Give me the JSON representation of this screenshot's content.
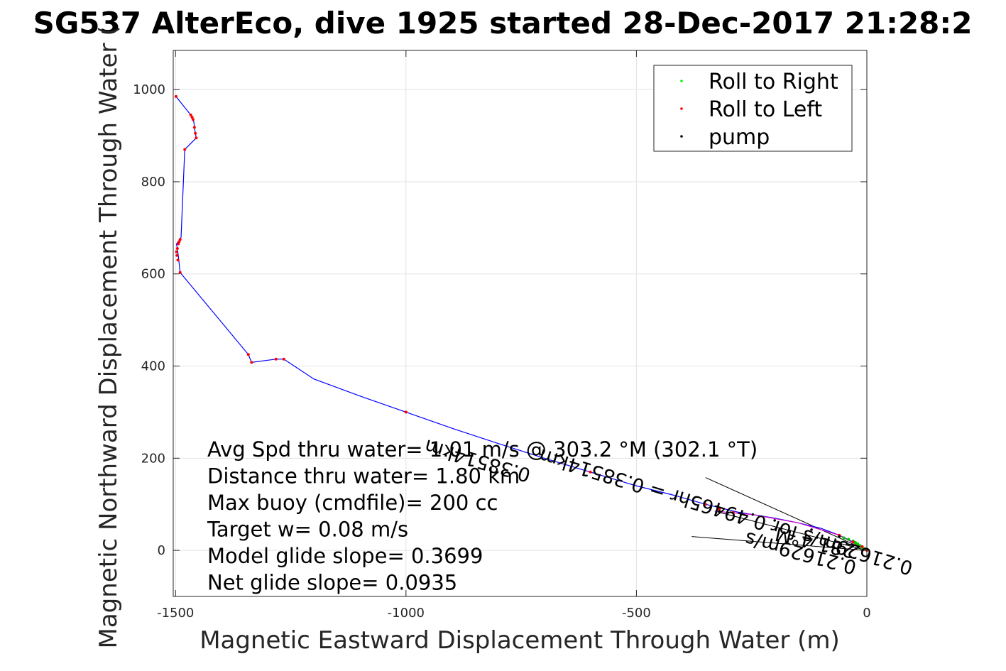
{
  "chart_data": {
    "type": "line",
    "title": "SG537 AlterEco, dive 1925 started 28-Dec-2017 21:28:2",
    "xlabel": "Magnetic Eastward Displacement Through Water (m)",
    "ylabel": "Magnetic Northward Displacement Through Water (",
    "xlim": [
      -1505,
      0
    ],
    "ylim": [
      -100,
      1085
    ],
    "xticks": [
      -1500,
      -1000,
      -500,
      0
    ],
    "yticks": [
      0,
      200,
      400,
      600,
      800,
      1000
    ],
    "xtick_labels": [
      "-1500",
      "-1000",
      "-500",
      "0"
    ],
    "ytick_labels": [
      "0",
      "200",
      "400",
      "600",
      "800",
      "1000"
    ],
    "grid": true,
    "legend_position": "top-right",
    "legend": [
      {
        "label": "Roll to Right",
        "color": "#00ff00"
      },
      {
        "label": "Roll to Left",
        "color": "#ff0000"
      },
      {
        "label": "pump",
        "color": "#000000"
      }
    ],
    "track": {
      "color": "#0000ff",
      "x": [
        0,
        -30,
        -60,
        -100,
        -150,
        -200,
        -280,
        -350,
        -420,
        -500,
        -600,
        -700,
        -800,
        -900,
        -1000,
        -1100,
        -1200,
        -1265,
        -1282,
        -1335,
        -1342,
        -1490,
        -1494,
        -1496,
        -1498,
        -1494,
        -1490,
        -1488,
        -1480,
        -1455,
        -1457,
        -1459,
        -1460,
        -1462,
        -1464,
        -1467,
        -1499
      ],
      "y": [
        0,
        18,
        33,
        48,
        60,
        70,
        83,
        100,
        120,
        140,
        170,
        200,
        232,
        265,
        300,
        335,
        372,
        415,
        415,
        408,
        425,
        603,
        640,
        655,
        665,
        670,
        675,
        680,
        870,
        895,
        905,
        918,
        928,
        935,
        940,
        945,
        985
      ]
    },
    "roll_left_points": {
      "x": [
        -1499,
        -1467,
        -1464,
        -1462,
        -1459,
        -1457,
        -1455,
        -1480,
        -1490,
        -1492,
        -1494,
        -1496,
        -1498,
        -1497,
        -1495,
        -1490,
        -1342,
        -1335,
        -1282,
        -1265,
        -1000,
        -600,
        -350,
        -320,
        -290,
        -60,
        -30,
        -10,
        0
      ],
      "y": [
        985,
        945,
        940,
        935,
        918,
        905,
        895,
        870,
        675,
        670,
        665,
        655,
        648,
        640,
        630,
        603,
        425,
        408,
        415,
        415,
        300,
        170,
        100,
        90,
        82,
        33,
        18,
        8,
        0
      ]
    },
    "roll_right_points": {
      "x": [
        -60,
        -50,
        -40,
        -30,
        -25,
        -20,
        -15,
        -10,
        -5
      ],
      "y": [
        30,
        27,
        24,
        20,
        17,
        14,
        10,
        6,
        3
      ]
    },
    "pump_points": {
      "x": [
        -320,
        -200,
        -120,
        -60
      ],
      "y": [
        85,
        65,
        45,
        30
      ]
    },
    "current_arrow_lines": [
      {
        "x": [
          -350,
          0
        ],
        "y": [
          158,
          0
        ]
      },
      {
        "x": [
          -380,
          0
        ],
        "y": [
          30,
          0
        ]
      },
      {
        "x": [
          -330,
          0
        ],
        "y": [
          85,
          0
        ]
      }
    ],
    "annotations": [
      "Avg Spd thru water=  1.01 m/s @ 303.2 °M (302.1 °T)",
      "Distance thru water=  1.80 km",
      "Max buoy (cmdfile)= 200 cc",
      "Target w= 0.08 m/s",
      "Model glide slope= 0.3699",
      "Net glide slope= 0.0935"
    ],
    "rotated_labels": [
      "0.38514km",
      "0.21629m/s for 0.49465hr = 0.38514km",
      "281.4°M",
      "0.21629m/s"
    ]
  }
}
